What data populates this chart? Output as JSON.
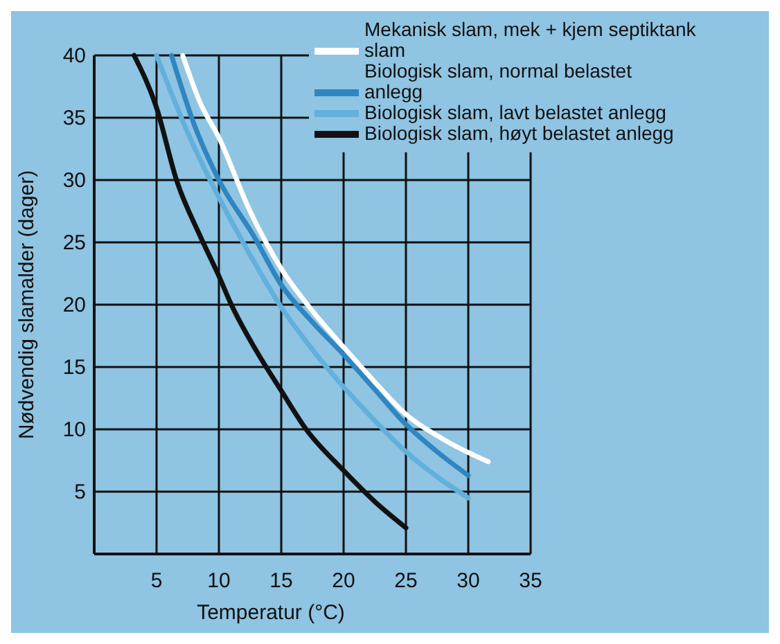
{
  "chart_data": {
    "type": "line",
    "xlabel": "Temperatur (°C)",
    "ylabel": "Nødvendig slamalder (dager)",
    "xlim": [
      0,
      35
    ],
    "ylim": [
      0,
      40
    ],
    "xticks": [
      5,
      10,
      15,
      20,
      25,
      30,
      35
    ],
    "yticks": [
      5,
      10,
      15,
      20,
      25,
      30,
      35,
      40
    ],
    "grid": true,
    "legend": "top right",
    "marker": "none",
    "line_style": "solid",
    "series": [
      {
        "name": "Mekanisk slam, mek + kjem septiktank slam",
        "color": "#ffffff",
        "x": [
          7.1,
          8.5,
          10,
          12.5,
          15,
          17.5,
          20,
          22.5,
          25,
          28,
          31.6
        ],
        "values": [
          40,
          36.2,
          33.4,
          27.5,
          22.9,
          19.5,
          16.6,
          13.8,
          11.2,
          9.2,
          7.4
        ]
      },
      {
        "name": "Biologisk slam, normal belastet anlegg",
        "color": "#2f86c0",
        "x": [
          6.2,
          8,
          10,
          12.8,
          15,
          17.5,
          20,
          22.5,
          25,
          27.5,
          30
        ],
        "values": [
          40,
          34.5,
          30,
          25.5,
          21.6,
          18.6,
          16,
          13.2,
          10.4,
          8.2,
          6.3
        ]
      },
      {
        "name": "Biologisk slam, lavt belastet anlegg",
        "color": "#62b0dc",
        "x": [
          5,
          7.5,
          10,
          12.5,
          15,
          17.5,
          20,
          22.5,
          25,
          27.5,
          30
        ],
        "values": [
          40,
          33.8,
          28.6,
          24,
          19.8,
          16.4,
          13.4,
          10.7,
          8.2,
          6.2,
          4.5
        ]
      },
      {
        "name": "Biologisk slam, høyt belastet anlegg",
        "color": "#111111",
        "x": [
          3.2,
          5,
          6.6,
          8.5,
          10,
          11,
          13,
          15,
          17,
          20,
          22.5,
          25
        ],
        "values": [
          40,
          35.8,
          30,
          25.5,
          22.3,
          20,
          16.3,
          13.1,
          10,
          6.7,
          4.2,
          2.1
        ]
      }
    ]
  }
}
